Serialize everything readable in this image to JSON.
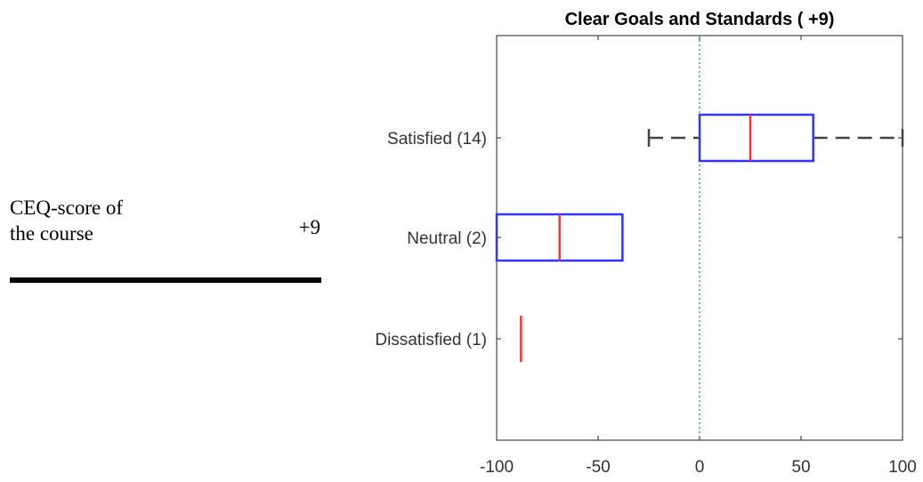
{
  "left_panel": {
    "label_lines": [
      "CEQ-score of",
      "the course"
    ],
    "score": "+9"
  },
  "chart_data": {
    "type": "boxplot",
    "orientation": "horizontal",
    "title": "Clear Goals and Standards ( +9)",
    "xlim": [
      -100,
      100
    ],
    "xticks": [
      -100,
      -50,
      0,
      50,
      100
    ],
    "xtick_labels": [
      "-100",
      "-50",
      "0",
      "50",
      "100"
    ],
    "reference_line": {
      "x": 0,
      "style": "dotted",
      "color": "#2a9fb5"
    },
    "box_color": "#3333ff",
    "median_color": "#ff3333",
    "whisker_color": "#444444",
    "grid": false,
    "categories": [
      "Satisfied (14)",
      "Neutral (2)",
      "Dissatisfied (1)"
    ],
    "boxes": [
      {
        "label": "Satisfied (14)",
        "min": -25,
        "q1": 0,
        "median": 25,
        "q3": 56,
        "max": 100
      },
      {
        "label": "Neutral (2)",
        "min": -100,
        "q1": -100,
        "median": -69,
        "q3": -38,
        "max": -38
      },
      {
        "label": "Dissatisfied (1)",
        "min": -88,
        "q1": -88,
        "median": -88,
        "q3": -88,
        "max": -88
      }
    ]
  }
}
